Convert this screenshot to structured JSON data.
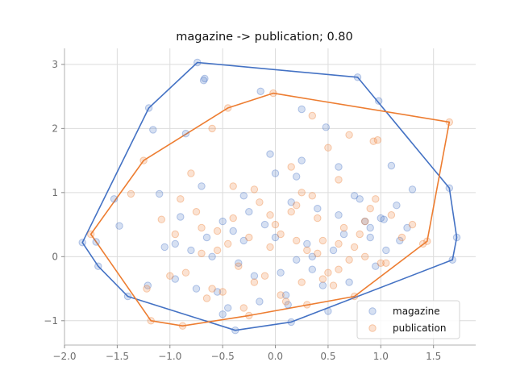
{
  "chart_data": {
    "type": "scatter",
    "title": "magazine -> publication; 0.80",
    "xlabel": "",
    "ylabel": "",
    "xlim": [
      -2.0,
      1.9
    ],
    "ylim": [
      -1.38,
      3.25
    ],
    "xticks": [
      -2.0,
      -1.5,
      -1.0,
      -0.5,
      0.0,
      0.5,
      1.0,
      1.5
    ],
    "xtick_labels": [
      "−2.0",
      "−1.5",
      "−1.0",
      "−0.5",
      "0.0",
      "0.5",
      "1.0",
      "1.5"
    ],
    "yticks": [
      -1,
      0,
      1,
      2,
      3
    ],
    "ytick_labels": [
      "−1",
      "0",
      "1",
      "2",
      "3"
    ],
    "grid": true,
    "legend": {
      "position": "lower-right"
    },
    "series": [
      {
        "name": "magazine",
        "color": "#4472c4",
        "hull": [
          [
            -0.74,
            3.03
          ],
          [
            0.78,
            2.8
          ],
          [
            1.65,
            1.07
          ],
          [
            1.72,
            0.3
          ],
          [
            1.68,
            -0.05
          ],
          [
            0.15,
            -1.02
          ],
          [
            -0.38,
            -1.15
          ],
          [
            -1.4,
            -0.62
          ],
          [
            -1.68,
            -0.15
          ],
          [
            -1.83,
            0.22
          ],
          [
            -1.2,
            2.32
          ]
        ],
        "x": [
          -0.74,
          0.78,
          1.65,
          1.72,
          1.68,
          0.15,
          -0.38,
          -1.4,
          -1.68,
          -1.83,
          -1.2,
          -0.68,
          -0.67,
          0.98,
          -1.16,
          -0.14,
          0.25,
          0.48,
          1.1,
          -0.85,
          -1.53,
          -1.48,
          -1.7,
          -1.21,
          -1.1,
          -0.9,
          -0.95,
          1.25,
          1.18,
          1.03,
          0.6,
          0.2,
          -0.3,
          -0.5,
          0.0,
          0.8,
          1.3,
          0.9,
          -0.6,
          -0.2,
          0.35,
          0.55,
          -0.75,
          0.1,
          0.7,
          -0.45,
          1.0,
          -1.05,
          0.4,
          -0.1,
          0.3,
          -0.35,
          0.05,
          0.65,
          -0.8,
          0.95,
          -0.25,
          0.45,
          1.15,
          -0.55,
          0.15,
          -0.7,
          0.25,
          0.75,
          -0.15,
          0.5,
          -0.4,
          0.85,
          -0.95,
          0.0,
          0.2,
          -0.3,
          0.6,
          1.05,
          -0.65,
          0.35,
          -0.05,
          0.9,
          -0.5,
          0.12
        ],
        "y": [
          3.03,
          2.8,
          1.07,
          0.3,
          -0.05,
          -1.02,
          -1.15,
          -0.62,
          -0.15,
          0.22,
          2.32,
          2.75,
          2.78,
          2.43,
          1.98,
          2.58,
          2.3,
          2.02,
          1.42,
          1.92,
          0.9,
          0.48,
          0.23,
          -0.45,
          0.98,
          0.62,
          0.2,
          0.45,
          0.25,
          0.58,
          1.4,
          1.25,
          0.95,
          0.55,
          0.3,
          0.9,
          1.05,
          0.3,
          0.0,
          -0.3,
          -0.2,
          0.1,
          -0.5,
          -0.6,
          -0.4,
          -0.8,
          0.6,
          0.15,
          0.75,
          0.5,
          0.2,
          -0.1,
          -0.25,
          0.35,
          0.1,
          -0.15,
          0.7,
          -0.45,
          0.8,
          -0.55,
          0.85,
          1.1,
          1.5,
          0.95,
          -0.7,
          -0.85,
          0.4,
          0.55,
          -0.35,
          1.3,
          -0.05,
          0.25,
          0.65,
          0.1,
          0.3,
          0.0,
          1.6,
          0.45,
          -0.9,
          -0.75
        ]
      },
      {
        "name": "publication",
        "color": "#ed7d31",
        "hull": [
          [
            -0.02,
            2.55
          ],
          [
            1.65,
            2.1
          ],
          [
            1.44,
            0.24
          ],
          [
            0.75,
            -0.62
          ],
          [
            -0.25,
            -0.92
          ],
          [
            -0.88,
            -1.08
          ],
          [
            -1.18,
            -1.0
          ],
          [
            -1.75,
            0.35
          ],
          [
            -1.25,
            1.5
          ],
          [
            -0.45,
            2.32
          ]
        ],
        "x": [
          -0.02,
          1.65,
          1.44,
          0.75,
          -0.25,
          -0.88,
          -1.18,
          -1.75,
          -1.25,
          -0.45,
          0.97,
          0.93,
          -1.37,
          -1.08,
          -1.22,
          -0.6,
          0.35,
          0.7,
          0.5,
          -0.8,
          1.4,
          1.3,
          0.85,
          -0.9,
          -0.4,
          0.15,
          -0.55,
          0.3,
          0.6,
          -0.2,
          0.05,
          0.45,
          -0.7,
          0.9,
          -1.0,
          0.2,
          -0.35,
          0.65,
          1.1,
          -0.15,
          0.4,
          -0.6,
          0.8,
          -0.05,
          0.25,
          -0.45,
          1.0,
          -0.75,
          0.55,
          0.1,
          -0.3,
          0.75,
          -0.95,
          0.35,
          0.0,
          1.2,
          -0.5,
          0.6,
          -0.1,
          0.2,
          -0.65,
          0.5,
          0.85,
          -0.25,
          0.15,
          -0.85,
          0.4,
          -0.4,
          0.7,
          0.95,
          0.3,
          -0.55,
          0.05,
          -0.2,
          0.45,
          1.05,
          -0.7,
          0.25,
          -0.05,
          0.6
        ],
        "y": [
          2.55,
          2.1,
          0.24,
          -0.62,
          -0.92,
          -1.08,
          -1.0,
          0.35,
          1.5,
          2.32,
          1.82,
          1.8,
          0.98,
          0.58,
          -0.5,
          2.0,
          2.2,
          1.9,
          1.7,
          1.3,
          0.2,
          0.5,
          0.0,
          0.9,
          1.1,
          0.7,
          0.4,
          0.1,
          -0.2,
          -0.4,
          -0.6,
          -0.35,
          0.05,
          0.75,
          -0.3,
          0.25,
          -0.15,
          0.45,
          0.65,
          0.85,
          0.6,
          -0.5,
          0.35,
          0.15,
          1.0,
          0.2,
          -0.1,
          0.7,
          -0.45,
          -0.7,
          -0.8,
          0.15,
          0.35,
          0.95,
          0.5,
          0.3,
          -0.55,
          1.2,
          -0.3,
          0.8,
          -0.65,
          -0.25,
          0.55,
          0.3,
          1.4,
          -0.25,
          0.05,
          0.6,
          -0.05,
          0.9,
          -0.75,
          0.1,
          0.35,
          1.05,
          0.25,
          -0.1,
          0.45,
          -0.4,
          0.65,
          0.2
        ]
      }
    ]
  }
}
